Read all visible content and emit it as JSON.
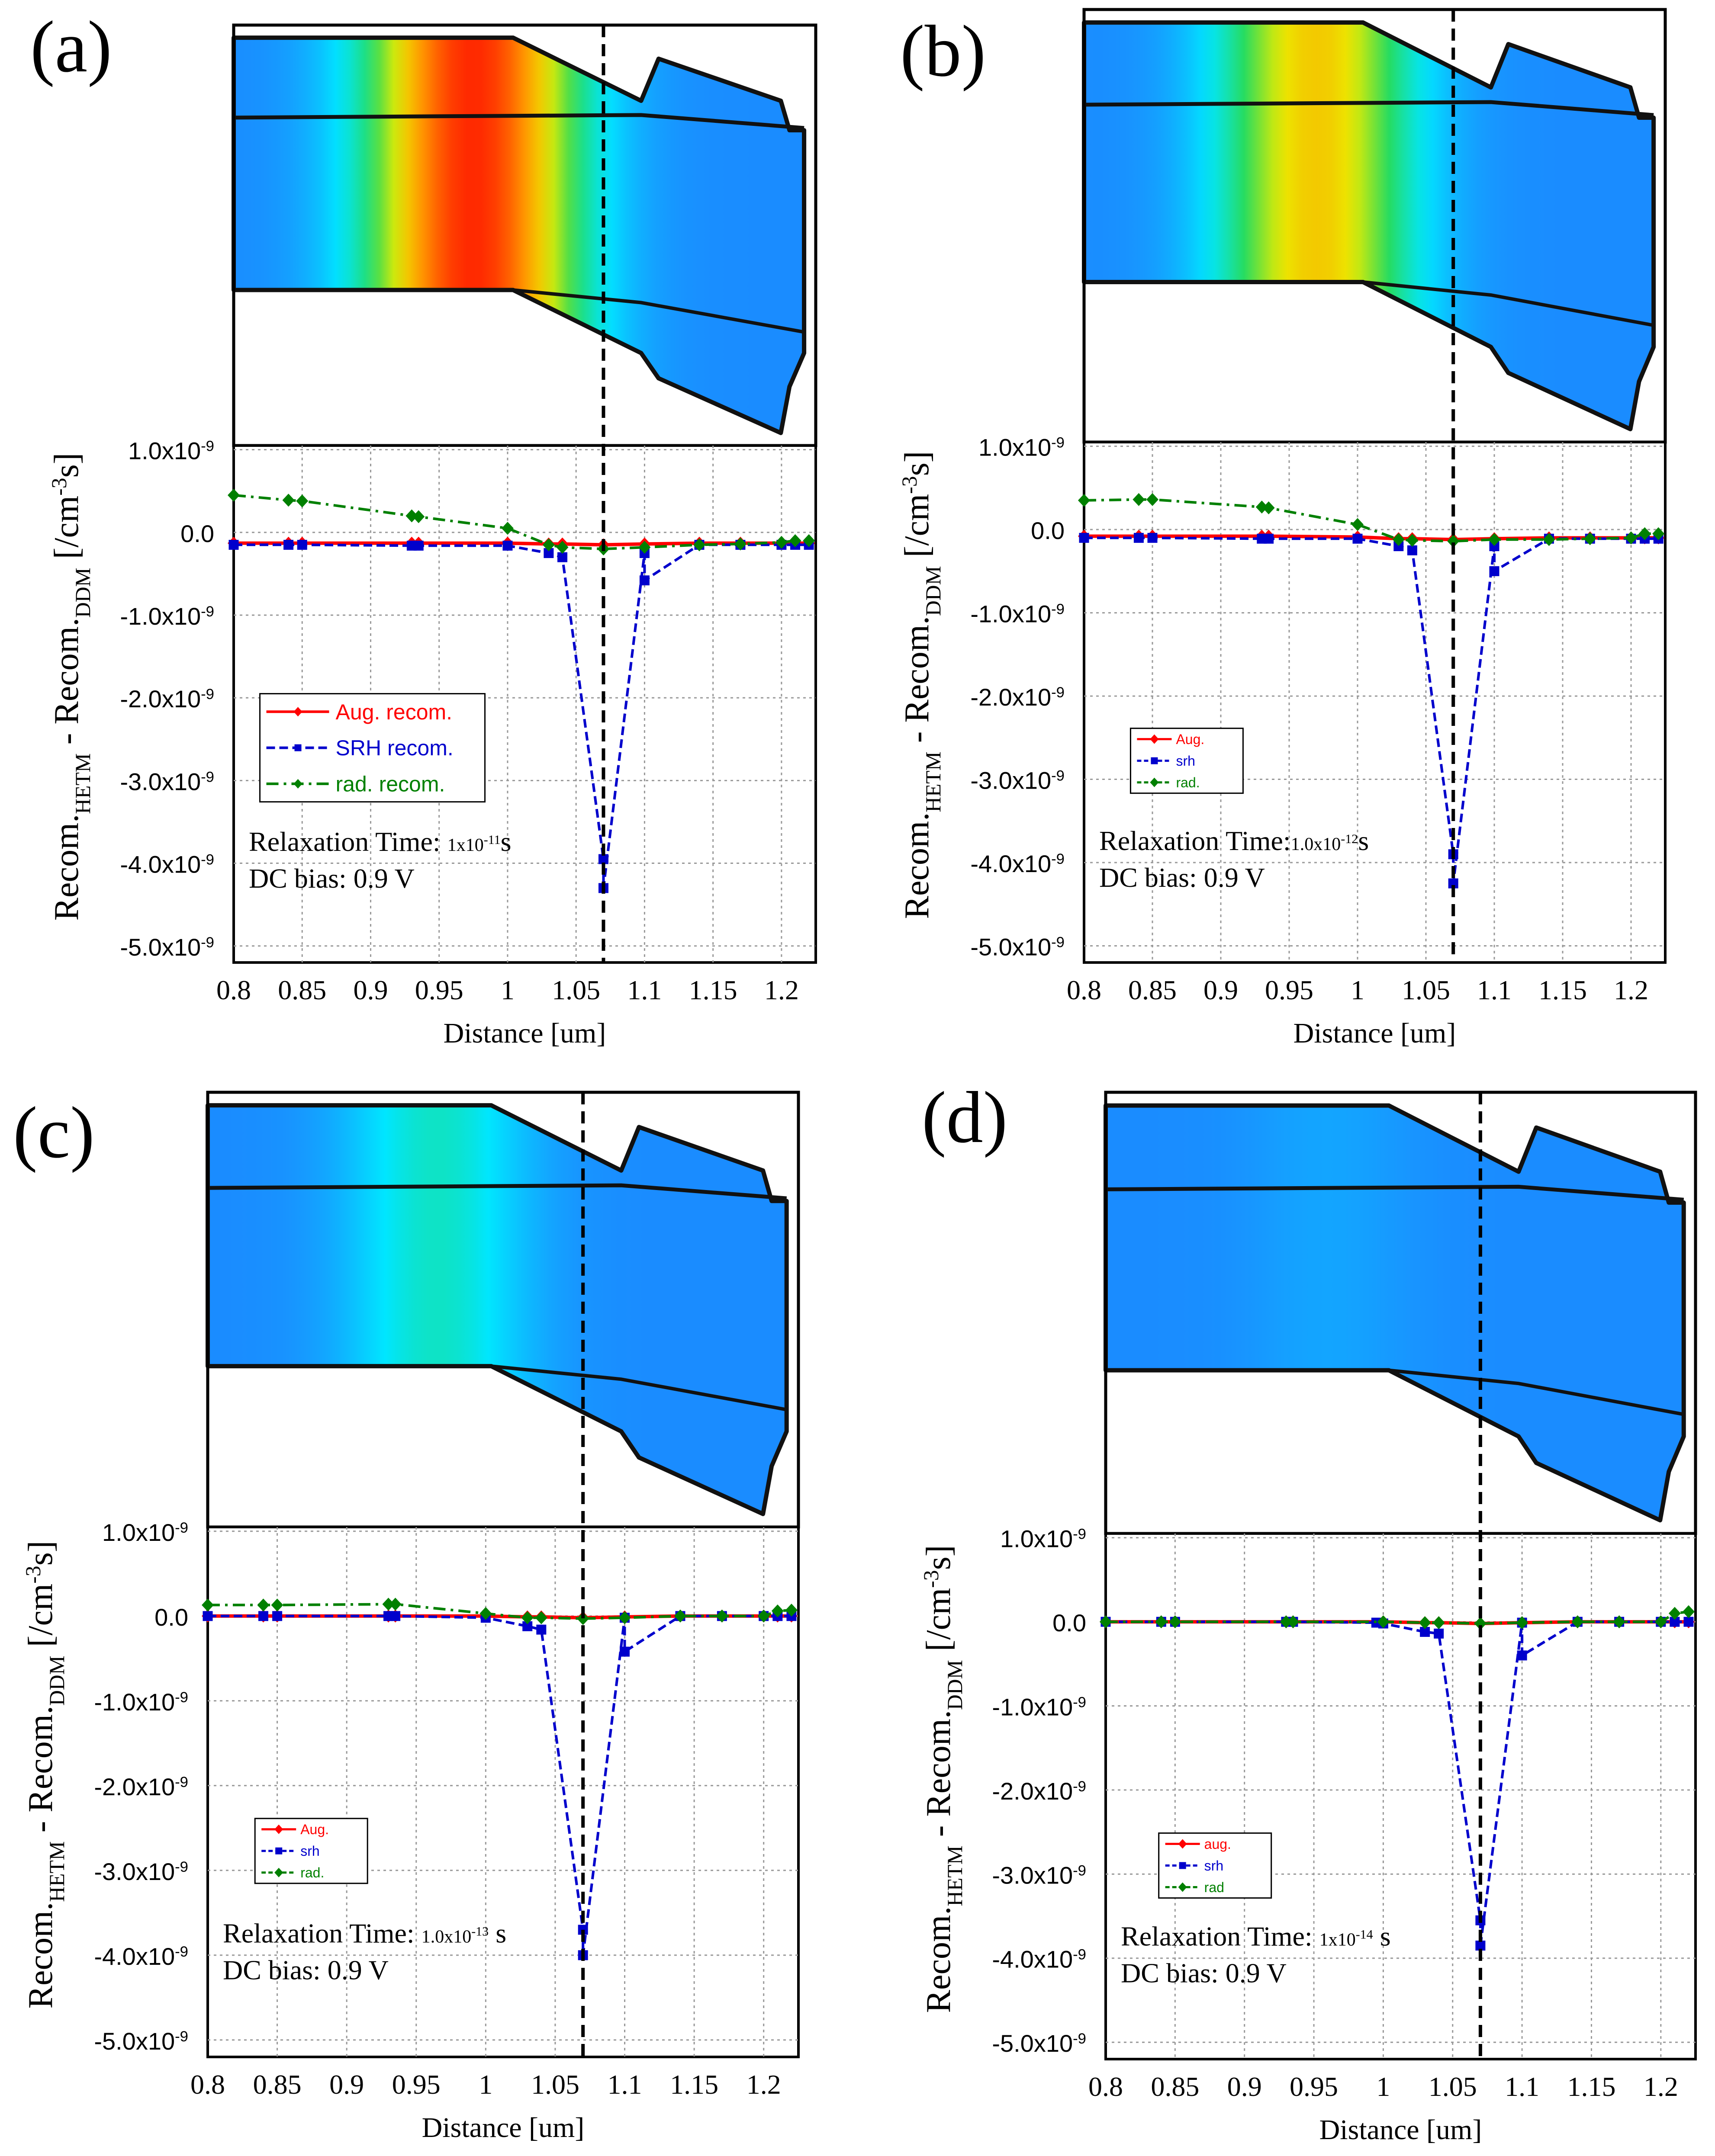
{
  "colors": {
    "aug": "#ff0000",
    "srh": "#0000cc",
    "rad": "#008000",
    "device_blue": "#1a8cff",
    "frame": "#000000",
    "grid": "#999999"
  },
  "shared_axes": {
    "xlabel": "Distance [um]",
    "ylabel_parts": [
      "Recom.",
      "HETM",
      " - Recom.",
      "DDM",
      " [/cm",
      "-3",
      "s]"
    ],
    "xlim": [
      0.8,
      1.225
    ],
    "ylim": [
      -5.2e-09,
      1.05e-09
    ],
    "xticks": [
      0.8,
      0.85,
      0.9,
      0.95,
      1,
      1.05,
      1.1,
      1.15,
      1.2
    ],
    "xtick_labels": [
      "0.8",
      "0.85",
      "0.9",
      "0.95",
      "1",
      "1.05",
      "1.1",
      "1.15",
      "1.2"
    ],
    "yticks": [
      1e-09,
      0,
      -1e-09,
      -2e-09,
      -3e-09,
      -4e-09,
      -5e-09
    ],
    "ytick_mantissas": [
      "1.0x10",
      "0.0",
      "-1.0x10",
      "-2.0x10",
      "-3.0x10",
      "-4.0x10",
      "-5.0x10"
    ],
    "ytick_exp": "-9",
    "dashed_x": 1.07
  },
  "chart_data": [
    {
      "type": "line",
      "panel_label": "(a)",
      "relax_prefix": "Relaxation Time: ",
      "relax_mantissa": "1x10",
      "relax_exp": "-11",
      "relax_unit": "s",
      "dc_text": "DC bias: 0.9 V",
      "legend_style": "large",
      "legend": [
        "Aug. recom.",
        "SRH recom.",
        "rad. recom."
      ],
      "heat": {
        "peak_x": 0.975,
        "width": 0.075,
        "amp": 1.0
      },
      "series": [
        {
          "name": "Aug. recom.",
          "x": [
            0.8,
            0.84,
            0.85,
            0.93,
            0.935,
            1.0,
            1.03,
            1.04,
            1.07,
            1.1,
            1.14,
            1.17,
            1.2,
            1.21,
            1.22
          ],
          "y": [
            -1.3e-10,
            -1.3e-10,
            -1.3e-10,
            -1.3e-10,
            -1.3e-10,
            -1.3e-10,
            -1.4e-10,
            -1.4e-10,
            -1.5e-10,
            -1.4e-10,
            -1.3e-10,
            -1.3e-10,
            -1.3e-10,
            -1.3e-10,
            -1.3e-10
          ]
        },
        {
          "name": "SRH recom.",
          "x": [
            0.8,
            0.84,
            0.85,
            0.93,
            0.935,
            1.0,
            1.03,
            1.04,
            1.07,
            1.07,
            1.1,
            1.1,
            1.14,
            1.17,
            1.2,
            1.21,
            1.22
          ],
          "y": [
            -1.5e-10,
            -1.5e-10,
            -1.5e-10,
            -1.6e-10,
            -1.6e-10,
            -1.6e-10,
            -2.5e-10,
            -3e-10,
            -3.95e-09,
            -4.3e-09,
            -2.5e-10,
            -5.8e-10,
            -1.5e-10,
            -1.5e-10,
            -1.5e-10,
            -1.5e-10,
            -1.5e-10
          ]
        },
        {
          "name": "rad. recom.",
          "x": [
            0.8,
            0.84,
            0.85,
            0.93,
            0.935,
            1.0,
            1.03,
            1.04,
            1.07,
            1.1,
            1.14,
            1.17,
            1.2,
            1.21,
            1.22
          ],
          "y": [
            4.5e-10,
            3.9e-10,
            3.8e-10,
            2e-10,
            1.9e-10,
            5e-11,
            -1.5e-10,
            -1.8e-10,
            -2e-10,
            -1.8e-10,
            -1.5e-10,
            -1.4e-10,
            -1.2e-10,
            -1e-10,
            -1e-10
          ]
        }
      ]
    },
    {
      "type": "line",
      "panel_label": "(b)",
      "relax_prefix": "Relaxation Time:",
      "relax_mantissa": "1.0x10",
      "relax_exp": "-12",
      "relax_unit": "s",
      "dc_text": "DC bias: 0.9 V",
      "legend_style": "small",
      "legend": [
        "Aug.",
        "srh",
        "rad."
      ],
      "heat": {
        "peak_x": 0.97,
        "width": 0.07,
        "amp": 0.66
      },
      "series": [
        {
          "name": "Aug.",
          "x": [
            0.8,
            0.84,
            0.85,
            0.93,
            0.935,
            1.0,
            1.03,
            1.04,
            1.07,
            1.1,
            1.14,
            1.17,
            1.2,
            1.21,
            1.22
          ],
          "y": [
            -8e-11,
            -8e-11,
            -8e-11,
            -8e-11,
            -8e-11,
            -9e-11,
            -1.1e-10,
            -1.1e-10,
            -1.2e-10,
            -1.1e-10,
            -1e-10,
            -1e-10,
            -1e-10,
            -1e-10,
            -1e-10
          ]
        },
        {
          "name": "srh",
          "x": [
            0.8,
            0.84,
            0.85,
            0.93,
            0.935,
            1.0,
            1.03,
            1.04,
            1.07,
            1.07,
            1.1,
            1.1,
            1.14,
            1.17,
            1.2,
            1.21,
            1.22
          ],
          "y": [
            -1e-10,
            -1e-10,
            -1e-10,
            -1.1e-10,
            -1.1e-10,
            -1.1e-10,
            -2e-10,
            -2.5e-10,
            -3.9e-09,
            -4.25e-09,
            -2e-10,
            -5e-10,
            -1.1e-10,
            -1.1e-10,
            -1.1e-10,
            -1.1e-10,
            -1.1e-10
          ]
        },
        {
          "name": "rad.",
          "x": [
            0.8,
            0.84,
            0.85,
            0.93,
            0.935,
            1.0,
            1.03,
            1.04,
            1.07,
            1.1,
            1.14,
            1.17,
            1.2,
            1.21,
            1.22
          ],
          "y": [
            3.5e-10,
            3.6e-10,
            3.6e-10,
            2.7e-10,
            2.6e-10,
            6e-11,
            -1.2e-10,
            -1.3e-10,
            -1.4e-10,
            -1.2e-10,
            -1.2e-10,
            -1.1e-10,
            -1e-10,
            -5e-11,
            -5e-11
          ]
        }
      ]
    },
    {
      "type": "line",
      "panel_label": "(c)",
      "relax_prefix": "Relaxation Time: ",
      "relax_mantissa": "1.0x10",
      "relax_exp": "-13",
      "relax_unit": " s",
      "dc_text": "DC bias: 0.9 V",
      "legend_style": "small",
      "legend": [
        "Aug.",
        "srh",
        "rad."
      ],
      "heat": {
        "peak_x": 0.965,
        "width": 0.065,
        "amp": 0.25
      },
      "series": [
        {
          "name": "Aug.",
          "x": [
            0.8,
            0.84,
            0.85,
            0.93,
            0.935,
            1.0,
            1.03,
            1.04,
            1.07,
            1.1,
            1.14,
            1.17,
            1.2,
            1.21,
            1.22
          ],
          "y": [
            0,
            0,
            0,
            0,
            0,
            0,
            -1e-11,
            -1e-11,
            -2e-11,
            -1e-11,
            0,
            0,
            0,
            0,
            0
          ]
        },
        {
          "name": "srh",
          "x": [
            0.8,
            0.84,
            0.85,
            0.93,
            0.935,
            1.0,
            1.03,
            1.04,
            1.07,
            1.07,
            1.1,
            1.1,
            1.14,
            1.17,
            1.2,
            1.21,
            1.22
          ],
          "y": [
            0,
            0,
            0,
            0,
            0,
            -2e-11,
            -1.2e-10,
            -1.6e-10,
            -3.7e-09,
            -4e-09,
            -2e-11,
            -4.2e-10,
            0,
            0,
            0,
            0,
            0
          ]
        },
        {
          "name": "rad.",
          "x": [
            0.8,
            0.84,
            0.85,
            0.93,
            0.935,
            1.0,
            1.03,
            1.04,
            1.07,
            1.1,
            1.14,
            1.17,
            1.2,
            1.21,
            1.22
          ],
          "y": [
            1.3e-10,
            1.3e-10,
            1.3e-10,
            1.4e-10,
            1.4e-10,
            3e-11,
            -2e-11,
            -2e-11,
            -3e-11,
            -2e-11,
            0,
            0,
            0,
            6e-11,
            7e-11
          ]
        }
      ]
    },
    {
      "type": "line",
      "panel_label": "(d)",
      "relax_prefix": "Relaxation Time: ",
      "relax_mantissa": "1x10",
      "relax_exp": "-14",
      "relax_unit": " s",
      "dc_text": "DC bias: 0.9 V",
      "legend_style": "small",
      "legend": [
        "aug.",
        "srh",
        "rad"
      ],
      "heat": {
        "peak_x": 0.96,
        "width": 0.06,
        "amp": 0.05
      },
      "series": [
        {
          "name": "aug.",
          "x": [
            0.8,
            0.84,
            0.85,
            0.93,
            0.935,
            1.0,
            1.03,
            1.04,
            1.07,
            1.1,
            1.14,
            1.17,
            1.2,
            1.21,
            1.22
          ],
          "y": [
            0,
            0,
            0,
            0,
            0,
            0,
            -1e-11,
            -1e-11,
            -2e-11,
            -1e-11,
            0,
            0,
            0,
            0,
            0
          ]
        },
        {
          "name": "srh",
          "x": [
            0.8,
            0.84,
            0.85,
            0.93,
            0.935,
            0.995,
            1.0,
            1.03,
            1.04,
            1.07,
            1.07,
            1.1,
            1.1,
            1.14,
            1.17,
            1.2,
            1.21,
            1.22
          ],
          "y": [
            0,
            0,
            0,
            0,
            0,
            -1e-11,
            -2e-11,
            -1.2e-10,
            -1.4e-10,
            -3.55e-09,
            -3.85e-09,
            -1e-11,
            -4e-10,
            0,
            0,
            0,
            0,
            0
          ]
        },
        {
          "name": "rad",
          "x": [
            0.8,
            0.84,
            0.85,
            0.93,
            0.935,
            1.0,
            1.03,
            1.04,
            1.07,
            1.1,
            1.14,
            1.17,
            1.2,
            1.21,
            1.22
          ],
          "y": [
            0,
            0,
            0,
            0,
            0,
            0,
            -1e-11,
            -1e-11,
            -2e-11,
            -1e-11,
            0,
            0,
            0,
            1e-10,
            1.2e-10
          ]
        }
      ]
    }
  ]
}
